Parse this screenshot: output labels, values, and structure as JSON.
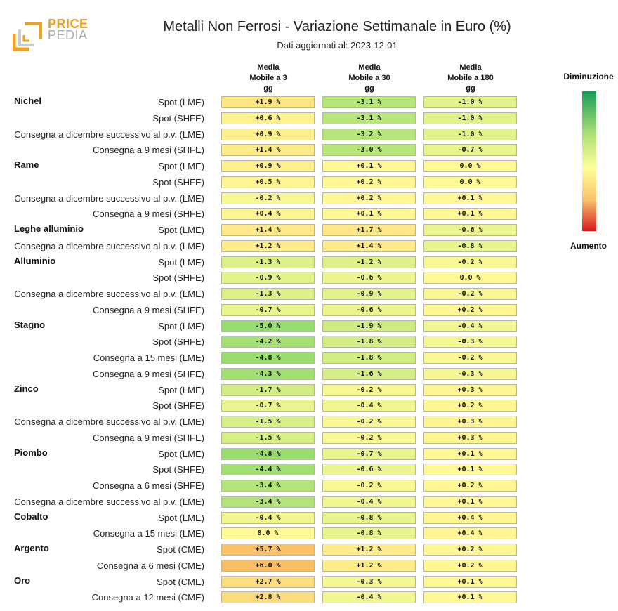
{
  "logo": {
    "line1": "PRICE",
    "line2": "PEDIA"
  },
  "title": "Metalli Non Ferrosi - Variazione Settimanale in Euro (%)",
  "subtitle": "Dati aggiornati al: 2023-12-01",
  "legend": {
    "top": "Diminuzione",
    "bottom": "Aumento"
  },
  "chart_data": {
    "type": "table",
    "columns": [
      {
        "lines": [
          "Media",
          "Mobile a 3",
          "gg"
        ]
      },
      {
        "lines": [
          "Media",
          "Mobile a 30",
          "gg"
        ]
      },
      {
        "lines": [
          "Media",
          "Mobile a 180",
          "gg"
        ]
      }
    ],
    "color_scale": {
      "min": -10,
      "max": 10,
      "low_label": "Diminuzione",
      "high_label": "Aumento"
    },
    "groups": [
      {
        "name": "Nichel",
        "rows": [
          {
            "label": "Spot (LME)",
            "values": [
              "+1.9 %",
              "-3.1 %",
              "-1.0 %"
            ]
          },
          {
            "label": "Spot (SHFE)",
            "values": [
              "+0.6 %",
              "-3.1 %",
              "-1.0 %"
            ]
          },
          {
            "label": "Consegna a dicembre successivo al p.v. (LME)",
            "values": [
              "+0.9 %",
              "-3.2 %",
              "-1.0 %"
            ]
          },
          {
            "label": "Consegna a 9 mesi (SHFE)",
            "values": [
              "+1.4 %",
              "-3.0 %",
              "-0.7 %"
            ]
          }
        ]
      },
      {
        "name": "Rame",
        "rows": [
          {
            "label": "Spot (LME)",
            "values": [
              "+0.9 %",
              "+0.1 %",
              "0.0 %"
            ]
          },
          {
            "label": "Spot (SHFE)",
            "values": [
              "+0.5 %",
              "+0.2 %",
              "0.0 %"
            ]
          },
          {
            "label": "Consegna a dicembre successivo al p.v. (LME)",
            "values": [
              "-0.2 %",
              "+0.2 %",
              "+0.1 %"
            ]
          },
          {
            "label": "Consegna a 9 mesi (SHFE)",
            "values": [
              "+0.4 %",
              "+0.1 %",
              "+0.1 %"
            ]
          }
        ]
      },
      {
        "name": "Leghe alluminio",
        "rows": [
          {
            "label": "Spot (LME)",
            "values": [
              "+1.4 %",
              "+1.7 %",
              "-0.6 %"
            ]
          },
          {
            "label": "Consegna a dicembre successivo al p.v. (LME)",
            "values": [
              "+1.2 %",
              "+1.4 %",
              "-0.8 %"
            ]
          }
        ]
      },
      {
        "name": "Alluminio",
        "rows": [
          {
            "label": "Spot (LME)",
            "values": [
              "-1.3 %",
              "-1.2 %",
              "-0.2 %"
            ]
          },
          {
            "label": "Spot (SHFE)",
            "values": [
              "-0.9 %",
              "-0.6 %",
              "0.0 %"
            ]
          },
          {
            "label": "Consegna a dicembre successivo al p.v. (LME)",
            "values": [
              "-1.3 %",
              "-0.9 %",
              "-0.2 %"
            ]
          },
          {
            "label": "Consegna a 9 mesi (SHFE)",
            "values": [
              "-0.7 %",
              "-0.6 %",
              "+0.2 %"
            ]
          }
        ]
      },
      {
        "name": "Stagno",
        "rows": [
          {
            "label": "Spot (LME)",
            "values": [
              "-5.0 %",
              "-1.9 %",
              "-0.4 %"
            ]
          },
          {
            "label": "Spot (SHFE)",
            "values": [
              "-4.2 %",
              "-1.8 %",
              "-0.3 %"
            ]
          },
          {
            "label": "Consegna a 15 mesi (LME)",
            "values": [
              "-4.8 %",
              "-1.8 %",
              "-0.2 %"
            ]
          },
          {
            "label": "Consegna a 9 mesi (SHFE)",
            "values": [
              "-4.3 %",
              "-1.6 %",
              "-0.3 %"
            ]
          }
        ]
      },
      {
        "name": "Zinco",
        "rows": [
          {
            "label": "Spot (LME)",
            "values": [
              "-1.7 %",
              "-0.2 %",
              "+0.3 %"
            ]
          },
          {
            "label": "Spot (SHFE)",
            "values": [
              "-0.7 %",
              "-0.4 %",
              "+0.2 %"
            ]
          },
          {
            "label": "Consegna a dicembre successivo al p.v. (LME)",
            "values": [
              "-1.5 %",
              "-0.2 %",
              "+0.3 %"
            ]
          },
          {
            "label": "Consegna a 9 mesi (SHFE)",
            "values": [
              "-1.5 %",
              "-0.2 %",
              "+0.3 %"
            ]
          }
        ]
      },
      {
        "name": "Piombo",
        "rows": [
          {
            "label": "Spot (LME)",
            "values": [
              "-4.8 %",
              "-0.7 %",
              "+0.1 %"
            ]
          },
          {
            "label": "Spot (SHFE)",
            "values": [
              "-4.4 %",
              "-0.6 %",
              "+0.1 %"
            ]
          },
          {
            "label": "Consegna a 6 mesi (SHFE)",
            "values": [
              "-3.4 %",
              "-0.2 %",
              "+0.2 %"
            ]
          },
          {
            "label": "Consegna a dicembre successivo al p.v. (LME)",
            "values": [
              "-3.4 %",
              "-0.4 %",
              "+0.1 %"
            ]
          }
        ]
      },
      {
        "name": "Cobalto",
        "rows": [
          {
            "label": "Spot (LME)",
            "values": [
              "-0.4 %",
              "-0.8 %",
              "+0.4 %"
            ]
          },
          {
            "label": "Consegna a 15 mesi (LME)",
            "values": [
              "0.0 %",
              "-0.8 %",
              "+0.4 %"
            ]
          }
        ]
      },
      {
        "name": "Argento",
        "rows": [
          {
            "label": "Spot (CME)",
            "values": [
              "+5.7 %",
              "+1.2 %",
              "+0.2 %"
            ]
          },
          {
            "label": "Consegna a 6 mesi (CME)",
            "values": [
              "+6.0 %",
              "+1.2 %",
              "+0.2 %"
            ]
          }
        ]
      },
      {
        "name": "Oro",
        "rows": [
          {
            "label": "Spot (CME)",
            "values": [
              "+2.7 %",
              "-0.3 %",
              "+0.1 %"
            ]
          },
          {
            "label": "Consegna a 12 mesi (CME)",
            "values": [
              "+2.8 %",
              "-0.4 %",
              "+0.1 %"
            ]
          }
        ]
      }
    ]
  }
}
